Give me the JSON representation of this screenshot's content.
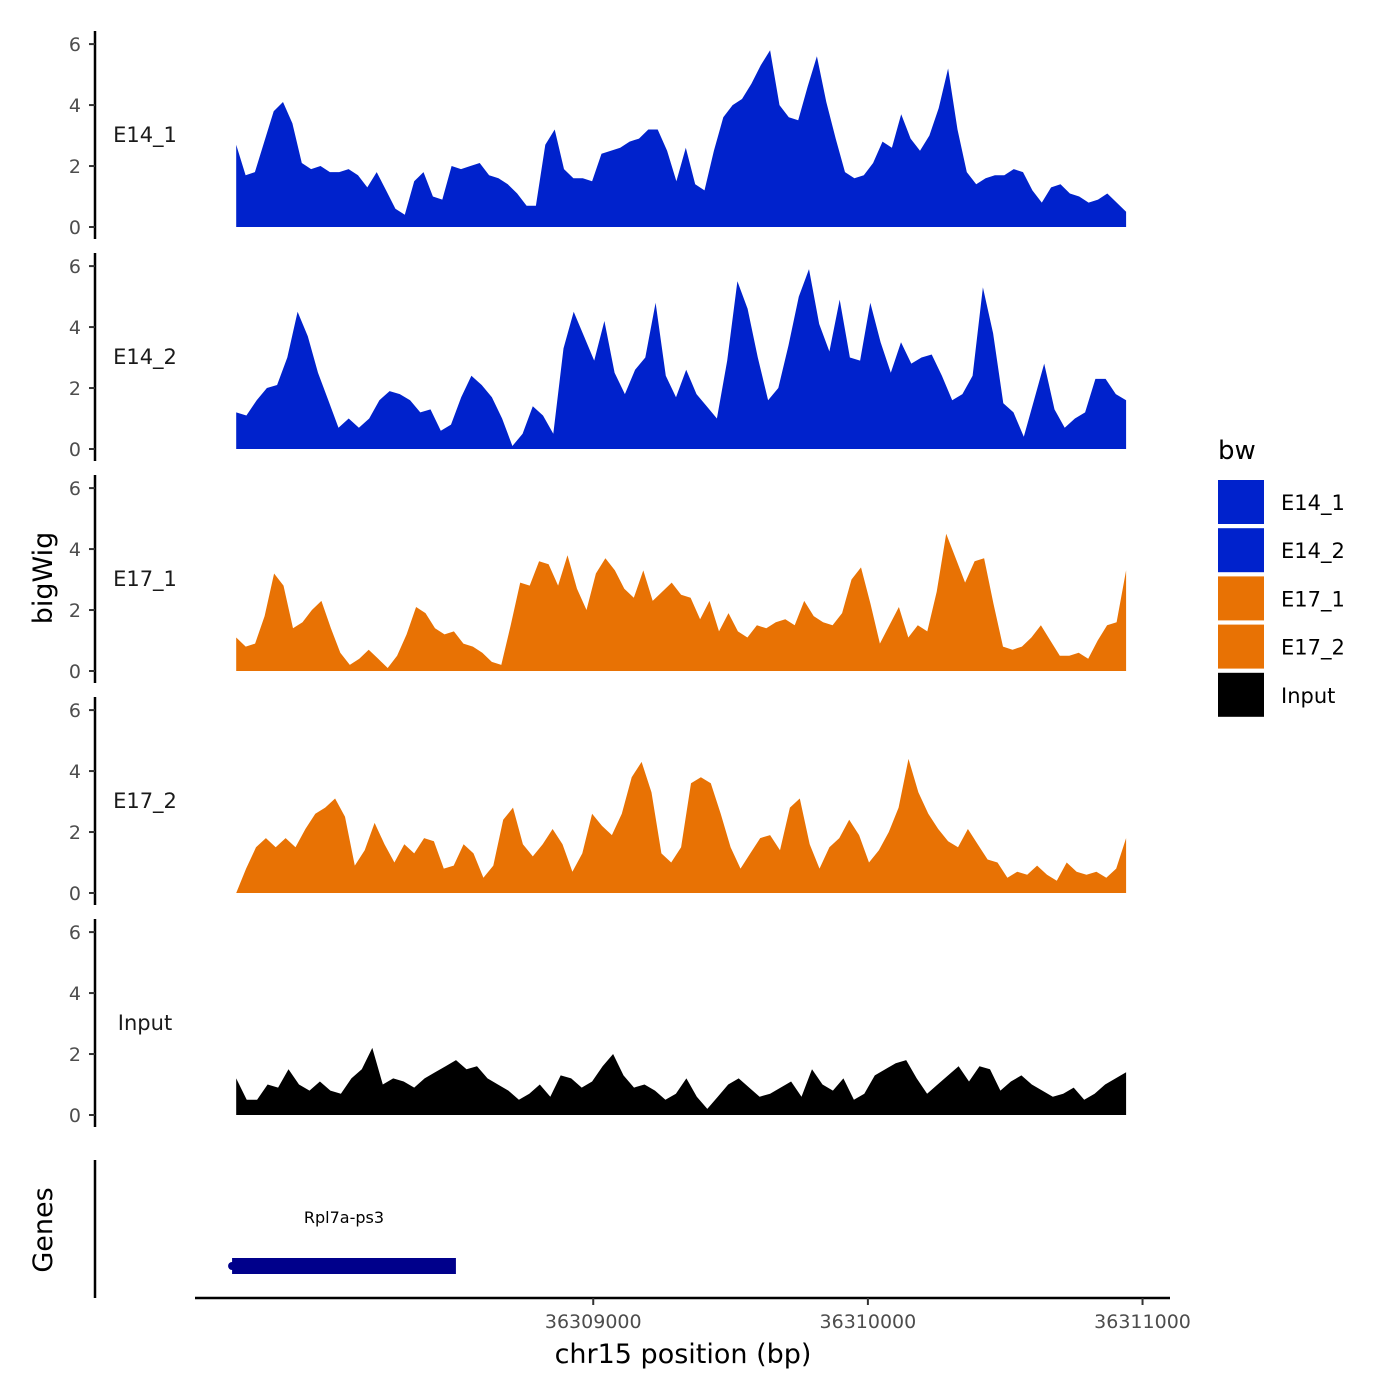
{
  "chart_data": {
    "type": "area",
    "title": "",
    "xlabel": "chr15 position (bp)",
    "ylabel": "bigWig",
    "genes_label": "Genes",
    "x_range": [
      36307550,
      36311100
    ],
    "data_range": [
      36307700,
      36310940
    ],
    "x_ticks": [
      {
        "value": 36309000,
        "label": "36309000"
      },
      {
        "value": 36310000,
        "label": "36310000"
      },
      {
        "value": 36311000,
        "label": "36311000"
      }
    ],
    "ylim": [
      0,
      6.2
    ],
    "y_ticks": [
      {
        "value": 0,
        "label": "0"
      },
      {
        "value": 2,
        "label": "2"
      },
      {
        "value": 4,
        "label": "4"
      },
      {
        "value": 6,
        "label": "6"
      }
    ],
    "legend": {
      "title": "bw",
      "entries": [
        {
          "name": "E14_1",
          "color": "#0022cc"
        },
        {
          "name": "E14_2",
          "color": "#0022cc"
        },
        {
          "name": "E17_1",
          "color": "#e87204"
        },
        {
          "name": "E17_2",
          "color": "#e87204"
        },
        {
          "name": "Input",
          "color": "#000000"
        }
      ]
    },
    "series": [
      {
        "name": "E14_1",
        "color": "#0022cc",
        "values": [
          2.7,
          1.7,
          1.8,
          2.8,
          3.8,
          4.1,
          3.4,
          2.1,
          1.9,
          2.0,
          1.8,
          1.8,
          1.9,
          1.7,
          1.3,
          1.8,
          1.2,
          0.6,
          0.4,
          1.5,
          1.8,
          1.0,
          0.9,
          2.0,
          1.9,
          2.0,
          2.1,
          1.7,
          1.6,
          1.4,
          1.1,
          0.7,
          0.7,
          2.7,
          3.2,
          1.9,
          1.6,
          1.6,
          1.5,
          2.4,
          2.5,
          2.6,
          2.8,
          2.9,
          3.2,
          3.2,
          2.5,
          1.5,
          2.6,
          1.4,
          1.2,
          2.5,
          3.6,
          4.0,
          4.2,
          4.7,
          5.3,
          5.8,
          4.0,
          3.6,
          3.5,
          4.6,
          5.6,
          4.1,
          2.9,
          1.8,
          1.6,
          1.7,
          2.1,
          2.8,
          2.6,
          3.7,
          2.9,
          2.5,
          3.0,
          3.9,
          5.2,
          3.2,
          1.8,
          1.4,
          1.6,
          1.7,
          1.7,
          1.9,
          1.8,
          1.2,
          0.8,
          1.3,
          1.4,
          1.1,
          1.0,
          0.8,
          0.9,
          1.1,
          0.8,
          0.5
        ]
      },
      {
        "name": "E14_2",
        "color": "#0022cc",
        "values": [
          1.2,
          1.1,
          1.6,
          2.0,
          2.1,
          3.0,
          4.5,
          3.7,
          2.5,
          1.6,
          0.7,
          1.0,
          0.7,
          1.0,
          1.6,
          1.9,
          1.8,
          1.6,
          1.2,
          1.3,
          0.6,
          0.8,
          1.7,
          2.4,
          2.1,
          1.7,
          1.0,
          0.1,
          0.5,
          1.4,
          1.1,
          0.5,
          3.3,
          4.5,
          3.7,
          2.9,
          4.2,
          2.5,
          1.8,
          2.6,
          3.0,
          4.8,
          2.4,
          1.7,
          2.6,
          1.8,
          1.4,
          1.0,
          2.9,
          5.5,
          4.6,
          3.0,
          1.6,
          2.0,
          3.4,
          5.0,
          5.9,
          4.1,
          3.2,
          4.9,
          3.0,
          2.9,
          4.8,
          3.5,
          2.5,
          3.5,
          2.8,
          3.0,
          3.1,
          2.4,
          1.6,
          1.8,
          2.4,
          5.3,
          3.8,
          1.5,
          1.2,
          0.4,
          1.6,
          2.8,
          1.3,
          0.7,
          1.0,
          1.2,
          2.3,
          2.3,
          1.8,
          1.6
        ]
      },
      {
        "name": "E17_1",
        "color": "#e87204",
        "values": [
          1.1,
          0.8,
          0.9,
          1.8,
          3.2,
          2.8,
          1.4,
          1.6,
          2.0,
          2.3,
          1.4,
          0.6,
          0.2,
          0.4,
          0.7,
          0.4,
          0.1,
          0.5,
          1.2,
          2.1,
          1.9,
          1.4,
          1.2,
          1.3,
          0.9,
          0.8,
          0.6,
          0.3,
          0.2,
          1.5,
          2.9,
          2.8,
          3.6,
          3.5,
          2.8,
          3.8,
          2.7,
          2.0,
          3.2,
          3.7,
          3.3,
          2.7,
          2.4,
          3.3,
          2.3,
          2.6,
          2.9,
          2.5,
          2.4,
          1.7,
          2.3,
          1.3,
          1.9,
          1.3,
          1.1,
          1.5,
          1.4,
          1.6,
          1.7,
          1.5,
          2.3,
          1.8,
          1.6,
          1.5,
          1.9,
          3.0,
          3.4,
          2.2,
          0.9,
          1.5,
          2.1,
          1.1,
          1.5,
          1.3,
          2.6,
          4.5,
          3.7,
          2.9,
          3.6,
          3.7,
          2.2,
          0.8,
          0.7,
          0.8,
          1.1,
          1.5,
          1.0,
          0.5,
          0.5,
          0.6,
          0.4,
          1.0,
          1.5,
          1.6,
          3.3
        ]
      },
      {
        "name": "E17_2",
        "color": "#e87204",
        "values": [
          0.0,
          0.8,
          1.5,
          1.8,
          1.5,
          1.8,
          1.5,
          2.1,
          2.6,
          2.8,
          3.1,
          2.5,
          0.9,
          1.4,
          2.3,
          1.6,
          1.0,
          1.6,
          1.3,
          1.8,
          1.7,
          0.8,
          0.9,
          1.6,
          1.3,
          0.5,
          0.9,
          2.4,
          2.8,
          1.6,
          1.2,
          1.6,
          2.1,
          1.6,
          0.7,
          1.3,
          2.6,
          2.2,
          1.9,
          2.6,
          3.8,
          4.3,
          3.3,
          1.3,
          1.0,
          1.5,
          3.6,
          3.8,
          3.6,
          2.6,
          1.5,
          0.8,
          1.3,
          1.8,
          1.9,
          1.4,
          2.8,
          3.1,
          1.6,
          0.8,
          1.5,
          1.8,
          2.4,
          1.9,
          1.0,
          1.4,
          2.0,
          2.8,
          4.4,
          3.3,
          2.6,
          2.1,
          1.7,
          1.5,
          2.1,
          1.6,
          1.1,
          1.0,
          0.5,
          0.7,
          0.6,
          0.9,
          0.6,
          0.4,
          1.0,
          0.7,
          0.6,
          0.7,
          0.5,
          0.8,
          1.8
        ]
      },
      {
        "name": "Input",
        "color": "#000000",
        "values": [
          1.2,
          0.5,
          0.5,
          1.0,
          0.9,
          1.5,
          1.0,
          0.8,
          1.1,
          0.8,
          0.7,
          1.2,
          1.5,
          2.2,
          1.0,
          1.2,
          1.1,
          0.9,
          1.2,
          1.4,
          1.6,
          1.8,
          1.5,
          1.6,
          1.2,
          1.0,
          0.8,
          0.5,
          0.7,
          1.0,
          0.6,
          1.3,
          1.2,
          0.9,
          1.1,
          1.6,
          2.0,
          1.3,
          0.9,
          1.0,
          0.8,
          0.5,
          0.7,
          1.2,
          0.6,
          0.2,
          0.6,
          1.0,
          1.2,
          0.9,
          0.6,
          0.7,
          0.9,
          1.1,
          0.6,
          1.5,
          1.0,
          0.8,
          1.2,
          0.5,
          0.7,
          1.3,
          1.5,
          1.7,
          1.8,
          1.2,
          0.7,
          1.0,
          1.3,
          1.6,
          1.1,
          1.6,
          1.5,
          0.8,
          1.1,
          1.3,
          1.0,
          0.8,
          0.6,
          0.7,
          0.9,
          0.5,
          0.7,
          1.0,
          1.2,
          1.4
        ]
      }
    ],
    "genes": [
      {
        "name": "Rpl7a-ps3",
        "start": 36307685,
        "end": 36308500,
        "strand": "-",
        "color": "#00008b"
      }
    ]
  }
}
